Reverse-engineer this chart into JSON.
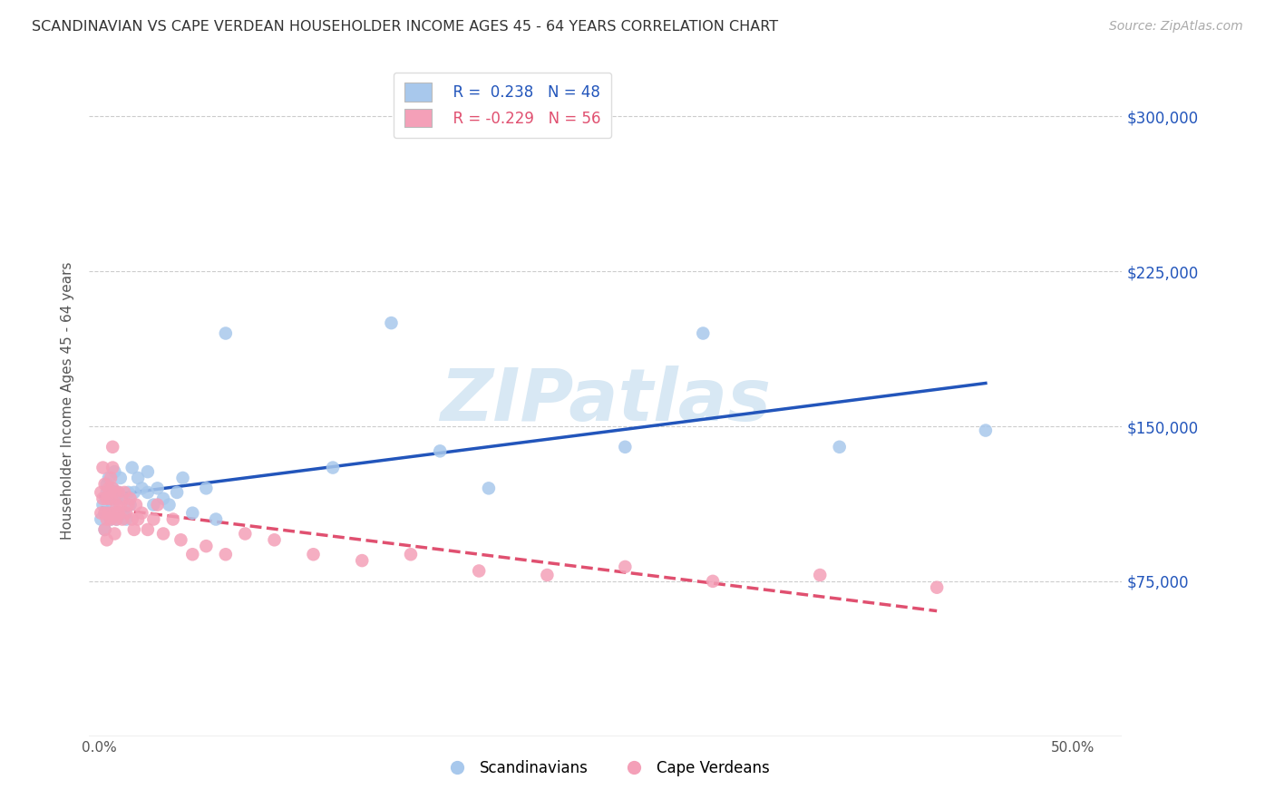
{
  "title": "SCANDINAVIAN VS CAPE VERDEAN HOUSEHOLDER INCOME AGES 45 - 64 YEARS CORRELATION CHART",
  "source": "Source: ZipAtlas.com",
  "ylabel": "Householder Income Ages 45 - 64 years",
  "xtick_labels": [
    "0.0%",
    "",
    "",
    "",
    "",
    "50.0%"
  ],
  "xtick_vals": [
    0.0,
    0.1,
    0.2,
    0.3,
    0.4,
    0.5
  ],
  "ytick_labels": [
    "$75,000",
    "$150,000",
    "$225,000",
    "$300,000"
  ],
  "ytick_vals": [
    75000,
    150000,
    225000,
    300000
  ],
  "ylim": [
    0,
    325000
  ],
  "xlim": [
    -0.005,
    0.525
  ],
  "blue_dot_color": "#A8C8EC",
  "pink_dot_color": "#F4A0B8",
  "blue_line_color": "#2255BB",
  "pink_line_color": "#E05070",
  "grid_color": "#CCCCCC",
  "watermark_color": "#D8E8F4",
  "legend_blue_r": "R =  0.238",
  "legend_blue_n": "N = 48",
  "legend_pink_r": "R = -0.229",
  "legend_pink_n": "N = 56",
  "scand_label": "Scandinavians",
  "cape_label": "Cape Verdeans",
  "scandinavian_x": [
    0.001,
    0.002,
    0.003,
    0.003,
    0.004,
    0.004,
    0.005,
    0.005,
    0.006,
    0.006,
    0.007,
    0.007,
    0.008,
    0.008,
    0.009,
    0.009,
    0.01,
    0.01,
    0.011,
    0.012,
    0.013,
    0.014,
    0.015,
    0.016,
    0.017,
    0.018,
    0.02,
    0.022,
    0.025,
    0.025,
    0.028,
    0.03,
    0.033,
    0.036,
    0.04,
    0.043,
    0.048,
    0.055,
    0.06,
    0.065,
    0.12,
    0.15,
    0.175,
    0.2,
    0.27,
    0.31,
    0.38,
    0.455
  ],
  "scandinavian_y": [
    105000,
    112000,
    108000,
    100000,
    118000,
    122000,
    125000,
    108000,
    115000,
    105000,
    120000,
    112000,
    128000,
    118000,
    105000,
    115000,
    118000,
    108000,
    125000,
    115000,
    108000,
    105000,
    118000,
    112000,
    130000,
    118000,
    125000,
    120000,
    128000,
    118000,
    112000,
    120000,
    115000,
    112000,
    118000,
    125000,
    108000,
    120000,
    105000,
    195000,
    130000,
    200000,
    138000,
    120000,
    140000,
    195000,
    140000,
    148000
  ],
  "capeverdean_x": [
    0.001,
    0.001,
    0.002,
    0.002,
    0.003,
    0.003,
    0.003,
    0.004,
    0.004,
    0.004,
    0.005,
    0.005,
    0.006,
    0.006,
    0.006,
    0.007,
    0.007,
    0.007,
    0.008,
    0.008,
    0.008,
    0.009,
    0.009,
    0.01,
    0.01,
    0.011,
    0.012,
    0.013,
    0.014,
    0.015,
    0.016,
    0.017,
    0.018,
    0.019,
    0.02,
    0.022,
    0.025,
    0.028,
    0.03,
    0.033,
    0.038,
    0.042,
    0.048,
    0.055,
    0.065,
    0.075,
    0.09,
    0.11,
    0.135,
    0.16,
    0.195,
    0.23,
    0.27,
    0.315,
    0.37,
    0.43
  ],
  "capeverdean_y": [
    118000,
    108000,
    130000,
    115000,
    122000,
    108000,
    100000,
    115000,
    105000,
    95000,
    120000,
    108000,
    115000,
    125000,
    105000,
    140000,
    130000,
    120000,
    118000,
    108000,
    98000,
    112000,
    105000,
    118000,
    108000,
    112000,
    105000,
    118000,
    108000,
    112000,
    115000,
    105000,
    100000,
    112000,
    105000,
    108000,
    100000,
    105000,
    112000,
    98000,
    105000,
    95000,
    88000,
    92000,
    88000,
    98000,
    95000,
    88000,
    85000,
    88000,
    80000,
    78000,
    82000,
    75000,
    78000,
    72000
  ]
}
